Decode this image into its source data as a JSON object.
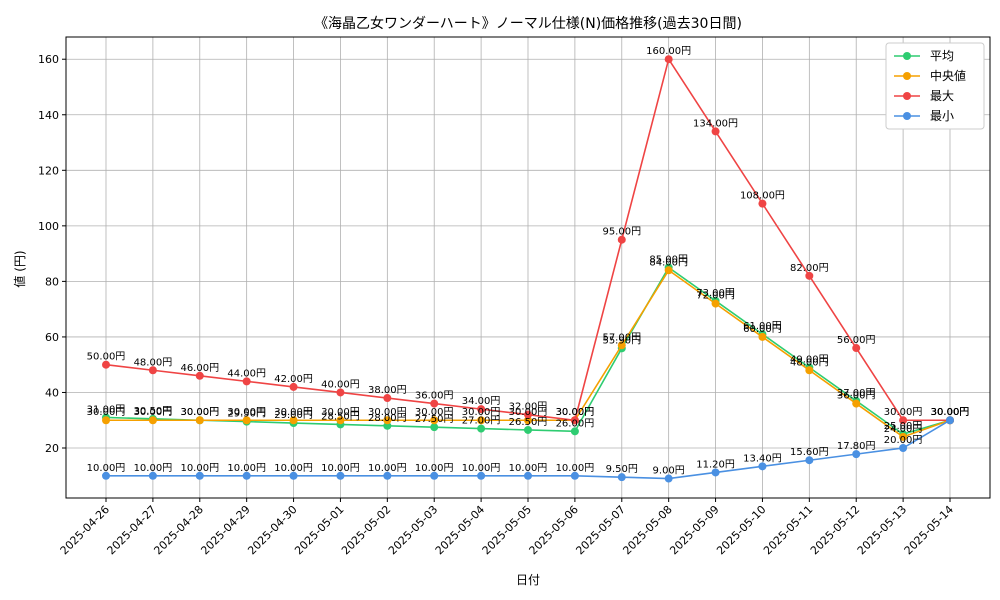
{
  "chart_data": {
    "type": "line",
    "title": "《海晶乙女ワンダーハート》ノーマル仕様(N)価格推移(過去30日間)",
    "xlabel": "日付",
    "ylabel": "値 (円)",
    "ylim": [
      2,
      168
    ],
    "yticks": [
      20,
      40,
      60,
      80,
      100,
      120,
      140,
      160
    ],
    "grid": true,
    "legend_position": "top-right",
    "categories": [
      "2025-04-26",
      "2025-04-27",
      "2025-04-28",
      "2025-04-29",
      "2025-04-30",
      "2025-05-01",
      "2025-05-02",
      "2025-05-03",
      "2025-05-04",
      "2025-05-05",
      "2025-05-06",
      "2025-05-07",
      "2025-05-08",
      "2025-05-09",
      "2025-05-10",
      "2025-05-11",
      "2025-05-12",
      "2025-05-13",
      "2025-05-14"
    ],
    "series": [
      {
        "name": "平均",
        "color": "#2ecc71",
        "values": [
          31.0,
          30.5,
          30.0,
          29.5,
          29.0,
          28.5,
          28.0,
          27.5,
          27.0,
          26.5,
          26.0,
          55.9,
          85.0,
          73.0,
          61.0,
          49.0,
          37.0,
          25.0,
          30.0
        ],
        "labels": [
          "31.00円",
          "30.50円",
          "30.00円",
          "29.50円",
          "29.00円",
          "28.50円",
          "28.00円",
          "27.50円",
          "27.00円",
          "26.50円",
          "26.00円",
          "55.90円",
          "85.00円",
          "73.00円",
          "61.00円",
          "49.00円",
          "37.00円",
          "25.00円",
          "30.00円"
        ]
      },
      {
        "name": "中央値",
        "color": "#f5a000",
        "values": [
          30.0,
          30.0,
          30.0,
          30.0,
          30.0,
          30.0,
          30.0,
          30.0,
          30.0,
          30.0,
          30.0,
          57.0,
          84.0,
          72.0,
          60.0,
          48.0,
          36.0,
          24.0,
          30.0
        ],
        "labels": [
          "30.00円",
          "30.00円",
          "30.00円",
          "30.00円",
          "30.00円",
          "30.00円",
          "30.00円",
          "30.00円",
          "30.00円",
          "30.00円",
          "30.00円",
          "57.00円",
          "84.00円",
          "72.00円",
          "60.00円",
          "48.00円",
          "36.00円",
          "24.00円",
          "30.00円"
        ]
      },
      {
        "name": "最大",
        "color": "#ef4444",
        "values": [
          50.0,
          48.0,
          46.0,
          44.0,
          42.0,
          40.0,
          38.0,
          36.0,
          34.0,
          32.0,
          30.0,
          95.0,
          160.0,
          134.0,
          108.0,
          82.0,
          56.0,
          30.0,
          30.0
        ],
        "labels": [
          "50.00円",
          "48.00円",
          "46.00円",
          "44.00円",
          "42.00円",
          "40.00円",
          "38.00円",
          "36.00円",
          "34.00円",
          "32.00円",
          "30.00円",
          "95.00円",
          "160.00円",
          "134.00円",
          "108.00円",
          "82.00円",
          "56.00円",
          "30.00円",
          "30.00円"
        ]
      },
      {
        "name": "最小",
        "color": "#4a90e2",
        "values": [
          10.0,
          10.0,
          10.0,
          10.0,
          10.0,
          10.0,
          10.0,
          10.0,
          10.0,
          10.0,
          10.0,
          9.5,
          9.0,
          11.2,
          13.4,
          15.6,
          17.8,
          20.0,
          30.0
        ],
        "labels": [
          "10.00円",
          "10.00円",
          "10.00円",
          "10.00円",
          "10.00円",
          "10.00円",
          "10.00円",
          "10.00円",
          "10.00円",
          "10.00円",
          "10.00円",
          "9.50円",
          "9.00円",
          "11.20円",
          "13.40円",
          "15.60円",
          "17.80円",
          "20.00円",
          "30.00円"
        ]
      }
    ]
  }
}
